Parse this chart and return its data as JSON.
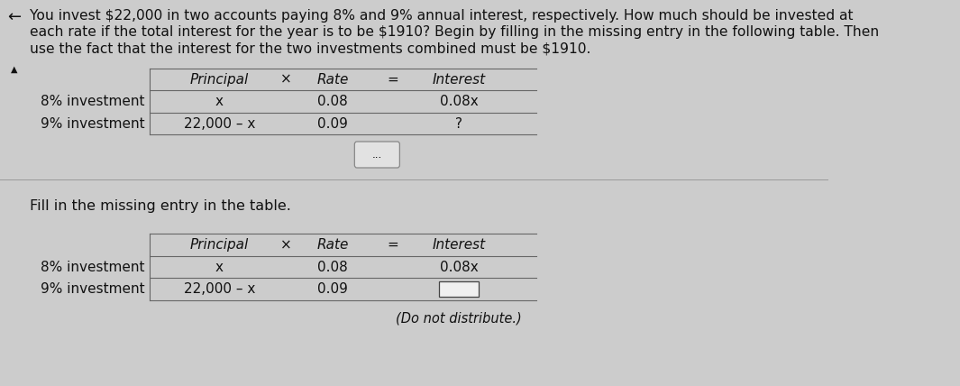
{
  "bg_color": "#cccccc",
  "header_lines": [
    "You invest $22,000 in two accounts paying 8% and 9% annual interest, respectively. How much should be invested at",
    "each rate if the total interest for the year is to be $1910? Begin by filling in the missing entry in the following table. Then",
    "use the fact that the interest for the two investments combined must be $1910."
  ],
  "header_fontsize": 11.2,
  "row_labels": [
    "8% investment",
    "9% investment"
  ],
  "table1_principal": [
    "x",
    "22,000 – x"
  ],
  "table1_rate": [
    "0.08",
    "0.09"
  ],
  "table1_interest": [
    "0.08x",
    "?"
  ],
  "table2_principal": [
    "x",
    "22,000 – x"
  ],
  "table2_rate": [
    "0.08",
    "0.09"
  ],
  "table2_interest": [
    "0.08x",
    ""
  ],
  "col_header": [
    "Principal",
    "×",
    "Rate",
    "=",
    "Interest"
  ],
  "dots_button": "...",
  "fill_in_text": "Fill in the missing entry in the table.",
  "fill_in_fontsize": 11.5,
  "do_not_distribute": "(Do not distribute.)",
  "text_color": "#111111",
  "line_color": "#666666",
  "sep_line_color": "#999999",
  "answer_box_color": "#f0f0f0",
  "answer_box_border": "#444444"
}
